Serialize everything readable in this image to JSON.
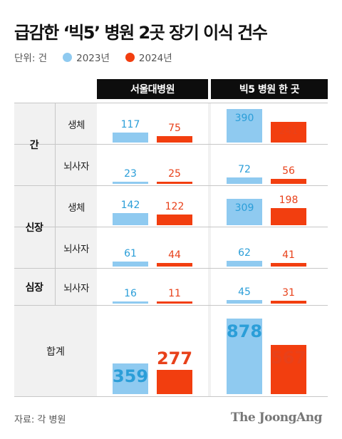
{
  "title": "급감한 ‘빅5’ 병원 2곳 장기 이식 건수",
  "unit": "단위: 건",
  "legend": [
    {
      "name": "2023년",
      "color": "#8fcaf0"
    },
    {
      "name": "2024년",
      "color": "#f23e0f"
    }
  ],
  "columns": [
    "서울대병원",
    "빅5 병원 한 곳"
  ],
  "total_label": "합계",
  "source": "자료: 각 병원",
  "brand": "The JoongAng",
  "chart_data": {
    "type": "bar",
    "title": "급감한 ‘빅5’ 병원 2곳 장기 이식 건수",
    "unit": "단위: 건",
    "series_names": [
      "2023년",
      "2024년"
    ],
    "columns": [
      "서울대병원",
      "빅5 병원 한 곳"
    ],
    "rows": [
      {
        "organ": "간",
        "donor": "생체",
        "values": {
          "서울대병원": [
            117,
            75
          ],
          "빅5 병원 한 곳": [
            390,
            241
          ]
        }
      },
      {
        "organ": "",
        "donor": "뇌사자",
        "values": {
          "서울대병원": [
            23,
            25
          ],
          "빅5 병원 한 곳": [
            72,
            56
          ]
        }
      },
      {
        "organ": "신장",
        "donor": "생체",
        "values": {
          "서울대병원": [
            142,
            122
          ],
          "빅5 병원 한 곳": [
            309,
            198
          ]
        }
      },
      {
        "organ": "",
        "donor": "뇌사자",
        "values": {
          "서울대병원": [
            61,
            44
          ],
          "빅5 병원 한 곳": [
            62,
            41
          ]
        }
      },
      {
        "organ": "심장",
        "donor": "뇌사자",
        "values": {
          "서울대병원": [
            16,
            11
          ],
          "빅5 병원 한 곳": [
            45,
            31
          ]
        }
      }
    ],
    "totals": {
      "label": "합계",
      "values": {
        "서울대병원": [
          359,
          277
        ],
        "빅5 병원 한 곳": [
          878,
          567
        ]
      }
    }
  }
}
